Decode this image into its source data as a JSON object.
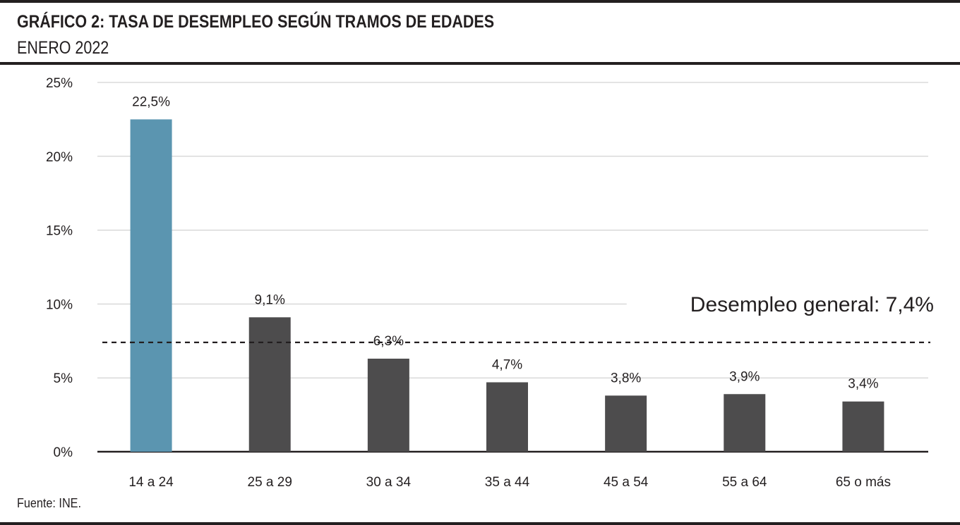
{
  "header": {
    "title": "GRÁFICO 2: TASA DE DESEMPLEO SEGÚN TRAMOS DE EDADES",
    "subtitle": "ENERO 2022"
  },
  "footer": {
    "source": "Fuente: INE."
  },
  "colors": {
    "highlight": "#5b95b0",
    "bar": "#4d4c4d",
    "grid": "#c8c8c8",
    "axis": "#231f20"
  },
  "chart_data": {
    "type": "bar",
    "categories": [
      "14 a 24",
      "25 a 29",
      "30 a 34",
      "35 a 44",
      "45 a 54",
      "55 a 64",
      "65 o más"
    ],
    "values": [
      22.5,
      9.1,
      6.3,
      4.7,
      3.8,
      3.9,
      3.4
    ],
    "value_labels": [
      "22,5%",
      "9,1%",
      "6,3%",
      "4,7%",
      "3,8%",
      "3,9%",
      "3,4%"
    ],
    "highlight_index": 0,
    "ylim": [
      0,
      25
    ],
    "y_ticks": [
      0,
      5,
      10,
      15,
      20,
      25
    ],
    "y_tick_labels": [
      "0%",
      "5%",
      "10%",
      "15%",
      "20%",
      "25%"
    ],
    "grid": true,
    "reference_line": {
      "value": 7.4,
      "style": "dashed",
      "label": "Desempleo general: 7,4%"
    }
  }
}
